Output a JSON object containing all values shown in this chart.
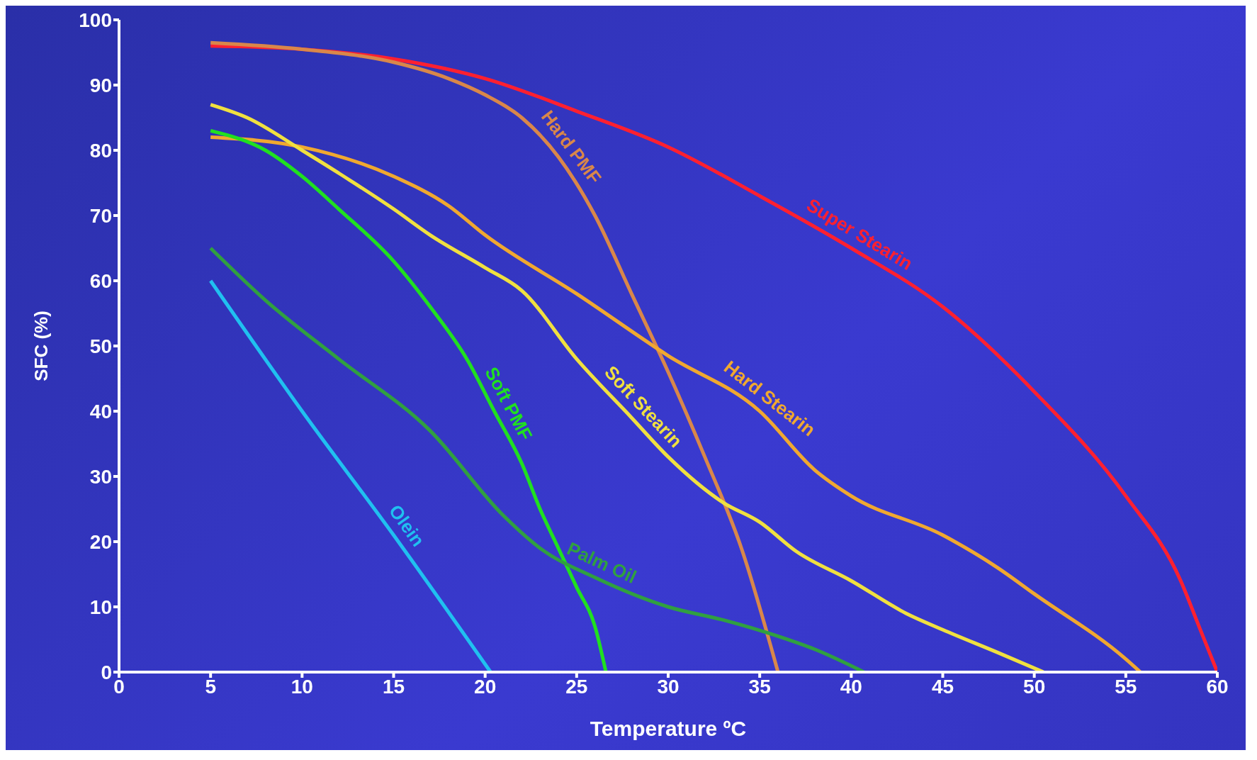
{
  "chart_data": {
    "type": "line",
    "xlabel": "Temperature ºC",
    "ylabel": "SFC (%)",
    "xlim": [
      0,
      60
    ],
    "ylim": [
      0,
      100
    ],
    "xticks": [
      0,
      5,
      10,
      15,
      20,
      25,
      30,
      35,
      40,
      45,
      50,
      55,
      60
    ],
    "yticks": [
      0,
      10,
      20,
      30,
      40,
      50,
      60,
      70,
      80,
      90,
      100
    ],
    "grid": false,
    "legend": false,
    "marker": "none",
    "line_style": "solid",
    "series": [
      {
        "name": "Super Stearin",
        "color": "#ff2030",
        "x": [
          5,
          10,
          15,
          20,
          25,
          30,
          35,
          40,
          45,
          50,
          55,
          58,
          59,
          60
        ],
        "values": [
          96,
          95.5,
          94,
          91,
          86,
          80.5,
          73,
          65,
          56,
          43,
          27,
          14,
          7,
          0
        ]
      },
      {
        "name": "Hard PMF",
        "color": "#d9874a",
        "x": [
          5,
          10,
          15,
          18,
          20,
          22,
          24,
          26,
          28,
          30,
          32,
          34,
          36
        ],
        "values": [
          96.5,
          95.5,
          93.5,
          91,
          88.5,
          85,
          79,
          70,
          58,
          46,
          33,
          19,
          0
        ]
      },
      {
        "name": "Hard Stearin",
        "color": "#f0a830",
        "x": [
          5,
          10,
          15,
          18,
          20,
          25,
          30,
          35,
          38,
          40,
          45,
          48,
          50,
          55,
          55.8
        ],
        "values": [
          82,
          80.5,
          76,
          71.5,
          67,
          58,
          48.5,
          40,
          31,
          27,
          21,
          16,
          12,
          2,
          0
        ]
      },
      {
        "name": "Soft Stearin",
        "color": "#f0e040",
        "x": [
          5,
          7,
          10,
          12,
          15,
          17,
          20,
          22,
          25,
          28,
          30,
          33,
          35,
          37,
          40,
          43,
          45,
          48,
          50.5
        ],
        "values": [
          87,
          85,
          80,
          76.5,
          71,
          67,
          62,
          58.5,
          48,
          39,
          33,
          26,
          23,
          18.5,
          14,
          9,
          6.5,
          3,
          0
        ]
      },
      {
        "name": "Soft PMF",
        "color": "#20e020",
        "x": [
          5,
          8,
          10,
          12,
          15,
          17,
          19,
          20.5,
          22,
          23,
          24,
          25,
          26,
          26.6
        ],
        "values": [
          83,
          80,
          76,
          71,
          63,
          56,
          48,
          40,
          32,
          25,
          19,
          13,
          7,
          0
        ]
      },
      {
        "name": "Palm Oil",
        "color": "#30a040",
        "x": [
          5,
          8,
          12,
          17,
          21,
          23,
          26,
          30,
          33,
          36,
          38,
          40.7
        ],
        "values": [
          65,
          57,
          48,
          37,
          24,
          19,
          14.5,
          10,
          8,
          5.5,
          3.5,
          0
        ]
      },
      {
        "name": "Olein",
        "color": "#20c0f0",
        "x": [
          5,
          10,
          15,
          20.3
        ],
        "values": [
          60,
          40,
          21,
          0
        ]
      }
    ]
  }
}
